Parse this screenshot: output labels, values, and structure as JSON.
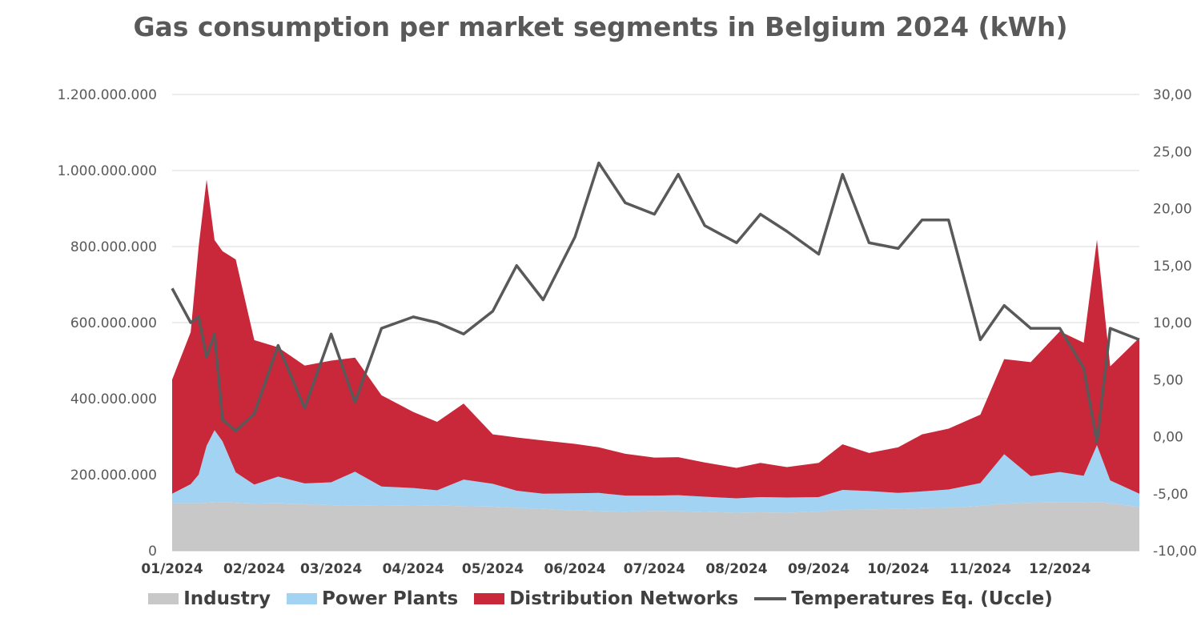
{
  "chart_data": {
    "type": "area",
    "title": "Gas consumption per market segments in Belgium 2024 (kWh)",
    "x_tick_labels": [
      "01/2024",
      "02/2024",
      "03/2024",
      "04/2024",
      "05/2024",
      "06/2024",
      "07/2024",
      "08/2024",
      "09/2024",
      "10/2024",
      "11/2024",
      "12/2024"
    ],
    "y_left": {
      "range": [
        0,
        1200000000
      ],
      "tick_labels": [
        "0",
        "200.000.000",
        "400.000.000",
        "600.000.000",
        "800.000.000",
        "1.000.000.000",
        "1.200.000.000"
      ]
    },
    "y_right": {
      "range": [
        -10,
        30
      ],
      "tick_labels": [
        "-10,00",
        "-5,00",
        "0,00",
        "5,00",
        "10,00",
        "15,00",
        "20,00",
        "25,00",
        "30,00"
      ]
    },
    "grid": true,
    "legend_position": "bottom",
    "x_dates": [
      "2024-01-01",
      "2024-01-08",
      "2024-01-11",
      "2024-01-14",
      "2024-01-17",
      "2024-01-20",
      "2024-01-25",
      "2024-02-01",
      "2024-02-10",
      "2024-02-20",
      "2024-03-01",
      "2024-03-10",
      "2024-03-20",
      "2024-04-01",
      "2024-04-10",
      "2024-04-20",
      "2024-05-01",
      "2024-05-10",
      "2024-05-20",
      "2024-06-01",
      "2024-06-10",
      "2024-06-20",
      "2024-07-01",
      "2024-07-10",
      "2024-07-20",
      "2024-08-01",
      "2024-08-10",
      "2024-08-20",
      "2024-09-01",
      "2024-09-10",
      "2024-09-20",
      "2024-10-01",
      "2024-10-10",
      "2024-10-20",
      "2024-11-01",
      "2024-11-10",
      "2024-11-20",
      "2024-12-01",
      "2024-12-10",
      "2024-12-15",
      "2024-12-20",
      "2024-12-31"
    ],
    "series": [
      {
        "name": "Industry",
        "color": "#c8c8c8",
        "kind": "stacked-area",
        "values": [
          125000000,
          125000000,
          125000000,
          126000000,
          127000000,
          128000000,
          126000000,
          124000000,
          125000000,
          122000000,
          120000000,
          118000000,
          119000000,
          120000000,
          119000000,
          117000000,
          116000000,
          113000000,
          110000000,
          106000000,
          104000000,
          103000000,
          105000000,
          104000000,
          102000000,
          100000000,
          101000000,
          100000000,
          103000000,
          108000000,
          109000000,
          110000000,
          112000000,
          113000000,
          118000000,
          124000000,
          126000000,
          127000000,
          127000000,
          128000000,
          125000000,
          115000000
        ]
      },
      {
        "name": "Power Plants",
        "color": "#a3d3f2",
        "kind": "stacked-area",
        "values": [
          25000000,
          50000000,
          75000000,
          150000000,
          190000000,
          160000000,
          80000000,
          50000000,
          70000000,
          55000000,
          60000000,
          90000000,
          50000000,
          45000000,
          40000000,
          70000000,
          60000000,
          45000000,
          40000000,
          45000000,
          48000000,
          42000000,
          40000000,
          42000000,
          40000000,
          38000000,
          40000000,
          40000000,
          38000000,
          52000000,
          48000000,
          42000000,
          44000000,
          48000000,
          60000000,
          130000000,
          70000000,
          80000000,
          70000000,
          150000000,
          60000000,
          35000000
        ]
      },
      {
        "name": "Distribution Networks",
        "color": "#c8283a",
        "kind": "stacked-area",
        "values": [
          300000000,
          400000000,
          600000000,
          700000000,
          500000000,
          500000000,
          560000000,
          380000000,
          340000000,
          310000000,
          320000000,
          300000000,
          240000000,
          200000000,
          180000000,
          200000000,
          130000000,
          140000000,
          140000000,
          130000000,
          120000000,
          110000000,
          100000000,
          100000000,
          90000000,
          80000000,
          90000000,
          80000000,
          90000000,
          120000000,
          100000000,
          120000000,
          150000000,
          160000000,
          180000000,
          250000000,
          300000000,
          370000000,
          350000000,
          540000000,
          300000000,
          410000000
        ]
      },
      {
        "name": "Temperatures Eq. (Uccle)",
        "color": "#595959",
        "kind": "line",
        "axis": "right",
        "values": [
          13.0,
          10.0,
          10.5,
          7.0,
          9.0,
          1.5,
          0.5,
          2.0,
          8.0,
          2.5,
          9.0,
          3.0,
          9.5,
          10.5,
          10.0,
          9.0,
          11.0,
          15.0,
          12.0,
          17.5,
          24.0,
          20.5,
          19.5,
          23.0,
          18.5,
          17.0,
          19.5,
          18.0,
          16.0,
          23.0,
          17.0,
          16.5,
          19.0,
          19.0,
          8.5,
          11.5,
          9.5,
          9.5,
          6.0,
          -0.5,
          9.5,
          8.5
        ]
      }
    ]
  },
  "legend": {
    "items": [
      {
        "label": "Industry",
        "color": "#c8c8c8"
      },
      {
        "label": "Power Plants",
        "color": "#a3d3f2"
      },
      {
        "label": "Distribution Networks",
        "color": "#c8283a"
      },
      {
        "label": "Temperatures Eq. (Uccle)",
        "color": "#595959"
      }
    ]
  }
}
